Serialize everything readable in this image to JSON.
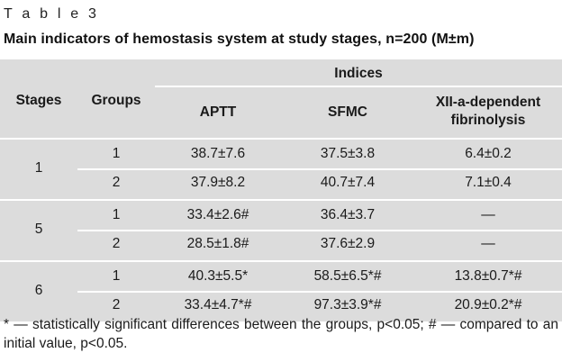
{
  "caption": "T a b l e  3",
  "title": "Main indicators of hemostasis system at study stages, n=200 (M±m)",
  "header": {
    "stages": "Stages",
    "groups": "Groups",
    "indices": "Indices",
    "aptt": "APTT",
    "sfmc": "SFMC",
    "xii_line1": "XII-a-dependent",
    "xii_line2": "fibrinolysis"
  },
  "stages": [
    {
      "stage": "1",
      "rows": [
        {
          "group": "1",
          "aptt": "38.7±7.6",
          "sfmc": "37.5±3.8",
          "xii": "6.4±0.2"
        },
        {
          "group": "2",
          "aptt": "37.9±8.2",
          "sfmc": "40.7±7.4",
          "xii": "7.1±0.4"
        }
      ]
    },
    {
      "stage": "5",
      "rows": [
        {
          "group": "1",
          "aptt": "33.4±2.6#",
          "sfmc": "36.4±3.7",
          "xii": "—"
        },
        {
          "group": "2",
          "aptt": "28.5±1.8#",
          "sfmc": "37.6±2.9",
          "xii": "—"
        }
      ]
    },
    {
      "stage": "6",
      "rows": [
        {
          "group": "1",
          "aptt": "40.3±5.5*",
          "sfmc": "58.5±6.5*#",
          "xii": "13.8±0.7*#"
        },
        {
          "group": "2",
          "aptt": "33.4±4.7*#",
          "sfmc": "97.3±3.9*#",
          "xii": "20.9±0.2*#"
        }
      ]
    }
  ],
  "footnote": "* — statistically significant differences between the groups, p<0.05; # — compared to an initial value, p<0.05."
}
